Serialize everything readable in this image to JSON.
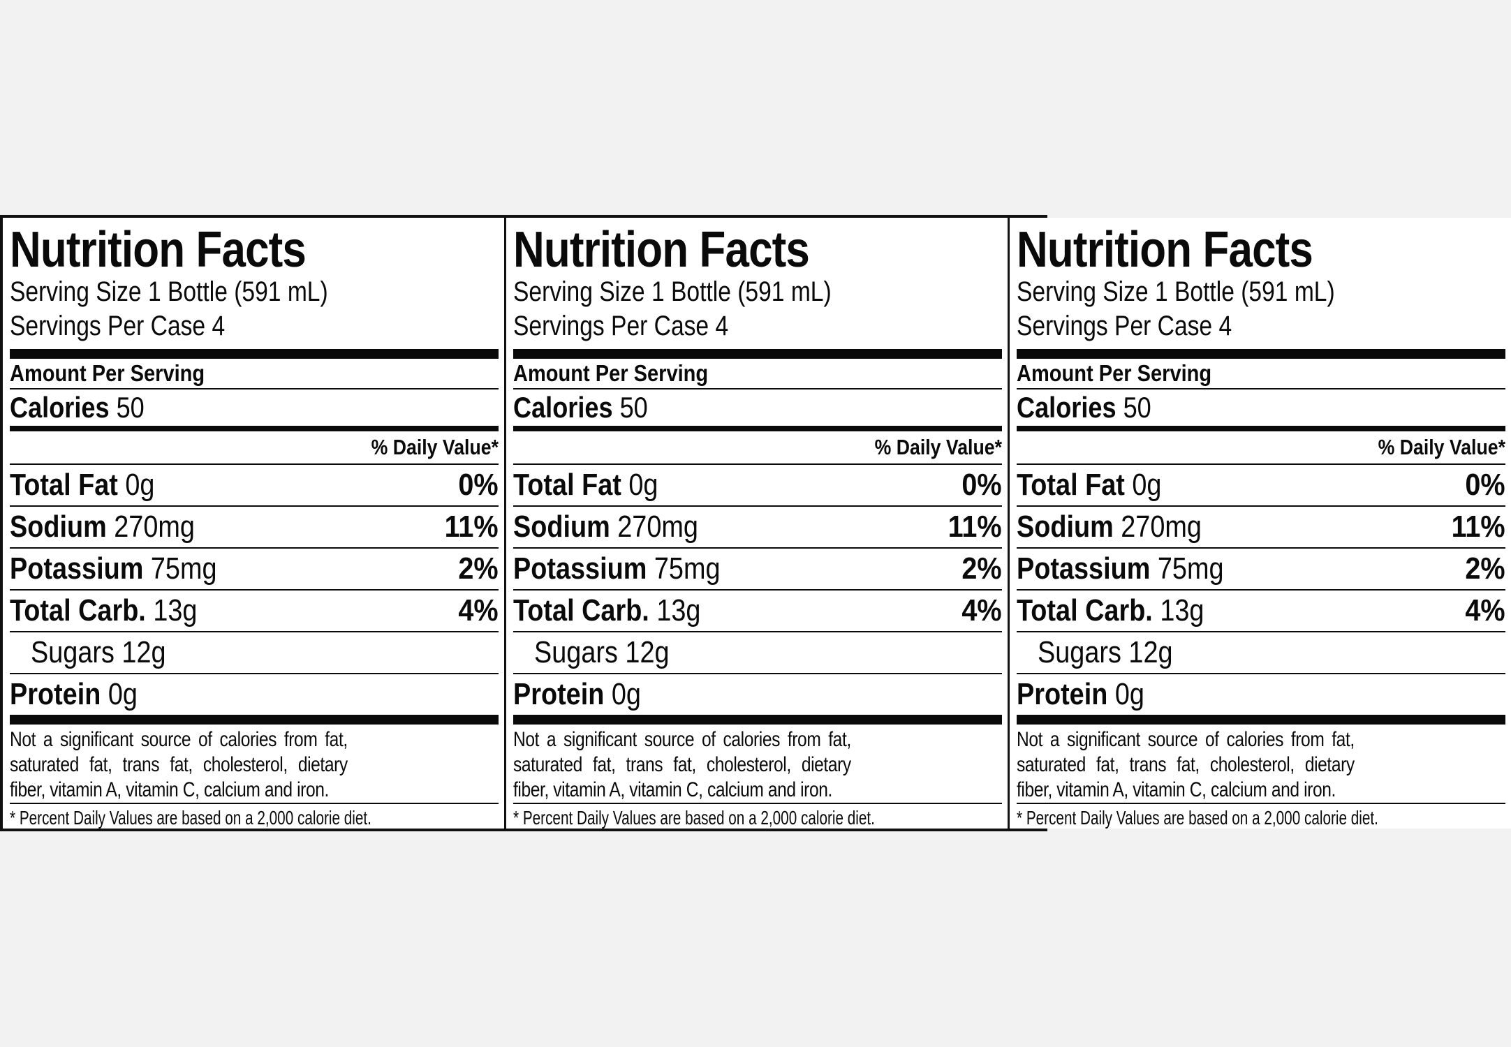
{
  "panels": [
    {
      "title": "Nutrition Facts",
      "serving_size": "Serving Size 1 Bottle (591 mL)",
      "servings_per": "Servings Per Case 4",
      "amount_per": "Amount Per Serving",
      "calories_label": "Calories",
      "calories_value": "50",
      "dv_header": "% Daily Value*",
      "nutrients": [
        {
          "name": "Total Fat",
          "amount": "0g",
          "dv": "0%"
        },
        {
          "name": "Sodium",
          "amount": "270mg",
          "dv": "11%"
        },
        {
          "name": "Potassium",
          "amount": "75mg",
          "dv": "2%"
        },
        {
          "name": "Total Carb.",
          "amount": "13g",
          "dv": "4%"
        },
        {
          "name": "Sugars 12g",
          "amount": "",
          "dv": ""
        },
        {
          "name": "Protein",
          "amount": "0g",
          "dv": ""
        }
      ],
      "not_significant": "Not a significant source of calories from fat, saturated fat, trans fat, cholesterol, dietary fiber, vitamin A, vitamin C, calcium and iron.",
      "footnote": "* Percent Daily Values are based on a 2,000 calorie diet."
    },
    {
      "title": "Nutrition Facts",
      "serving_size": "Serving Size 1 Bottle (591 mL)",
      "servings_per": "Servings Per Case 4",
      "amount_per": "Amount Per Serving",
      "calories_label": "Calories",
      "calories_value": "50",
      "dv_header": "% Daily Value*",
      "nutrients": [
        {
          "name": "Total Fat",
          "amount": "0g",
          "dv": "0%"
        },
        {
          "name": "Sodium",
          "amount": "270mg",
          "dv": "11%"
        },
        {
          "name": "Potassium",
          "amount": "75mg",
          "dv": "2%"
        },
        {
          "name": "Total Carb.",
          "amount": "13g",
          "dv": "4%"
        },
        {
          "name": "Sugars 12g",
          "amount": "",
          "dv": ""
        },
        {
          "name": "Protein",
          "amount": "0g",
          "dv": ""
        }
      ],
      "not_significant": "Not a significant source of calories from fat, saturated fat, trans fat, cholesterol, dietary fiber, vitamin A, vitamin C, calcium and iron.",
      "footnote": "* Percent Daily Values are based on a 2,000 calorie diet."
    },
    {
      "title": "Nutrition Facts",
      "serving_size": "Serving Size 1 Bottle (591 mL)",
      "servings_per": "Servings Per Case 4",
      "amount_per": "Amount Per Serving",
      "calories_label": "Calories",
      "calories_value": "50",
      "dv_header": "% Daily Value*",
      "nutrients": [
        {
          "name": "Total Fat",
          "amount": "0g",
          "dv": "0%"
        },
        {
          "name": "Sodium",
          "amount": "270mg",
          "dv": "11%"
        },
        {
          "name": "Potassium",
          "amount": "75mg",
          "dv": "2%"
        },
        {
          "name": "Total Carb.",
          "amount": "13g",
          "dv": "4%"
        },
        {
          "name": "Sugars 12g",
          "amount": "",
          "dv": ""
        },
        {
          "name": "Protein",
          "amount": "0g",
          "dv": ""
        }
      ],
      "not_significant": "Not a significant source of calories from fat, saturated fat, trans fat, cholesterol, dietary fiber, vitamin A, vitamin C, calcium and iron.",
      "footnote": "* Percent Daily Values are based on a 2,000 calorie diet."
    }
  ]
}
